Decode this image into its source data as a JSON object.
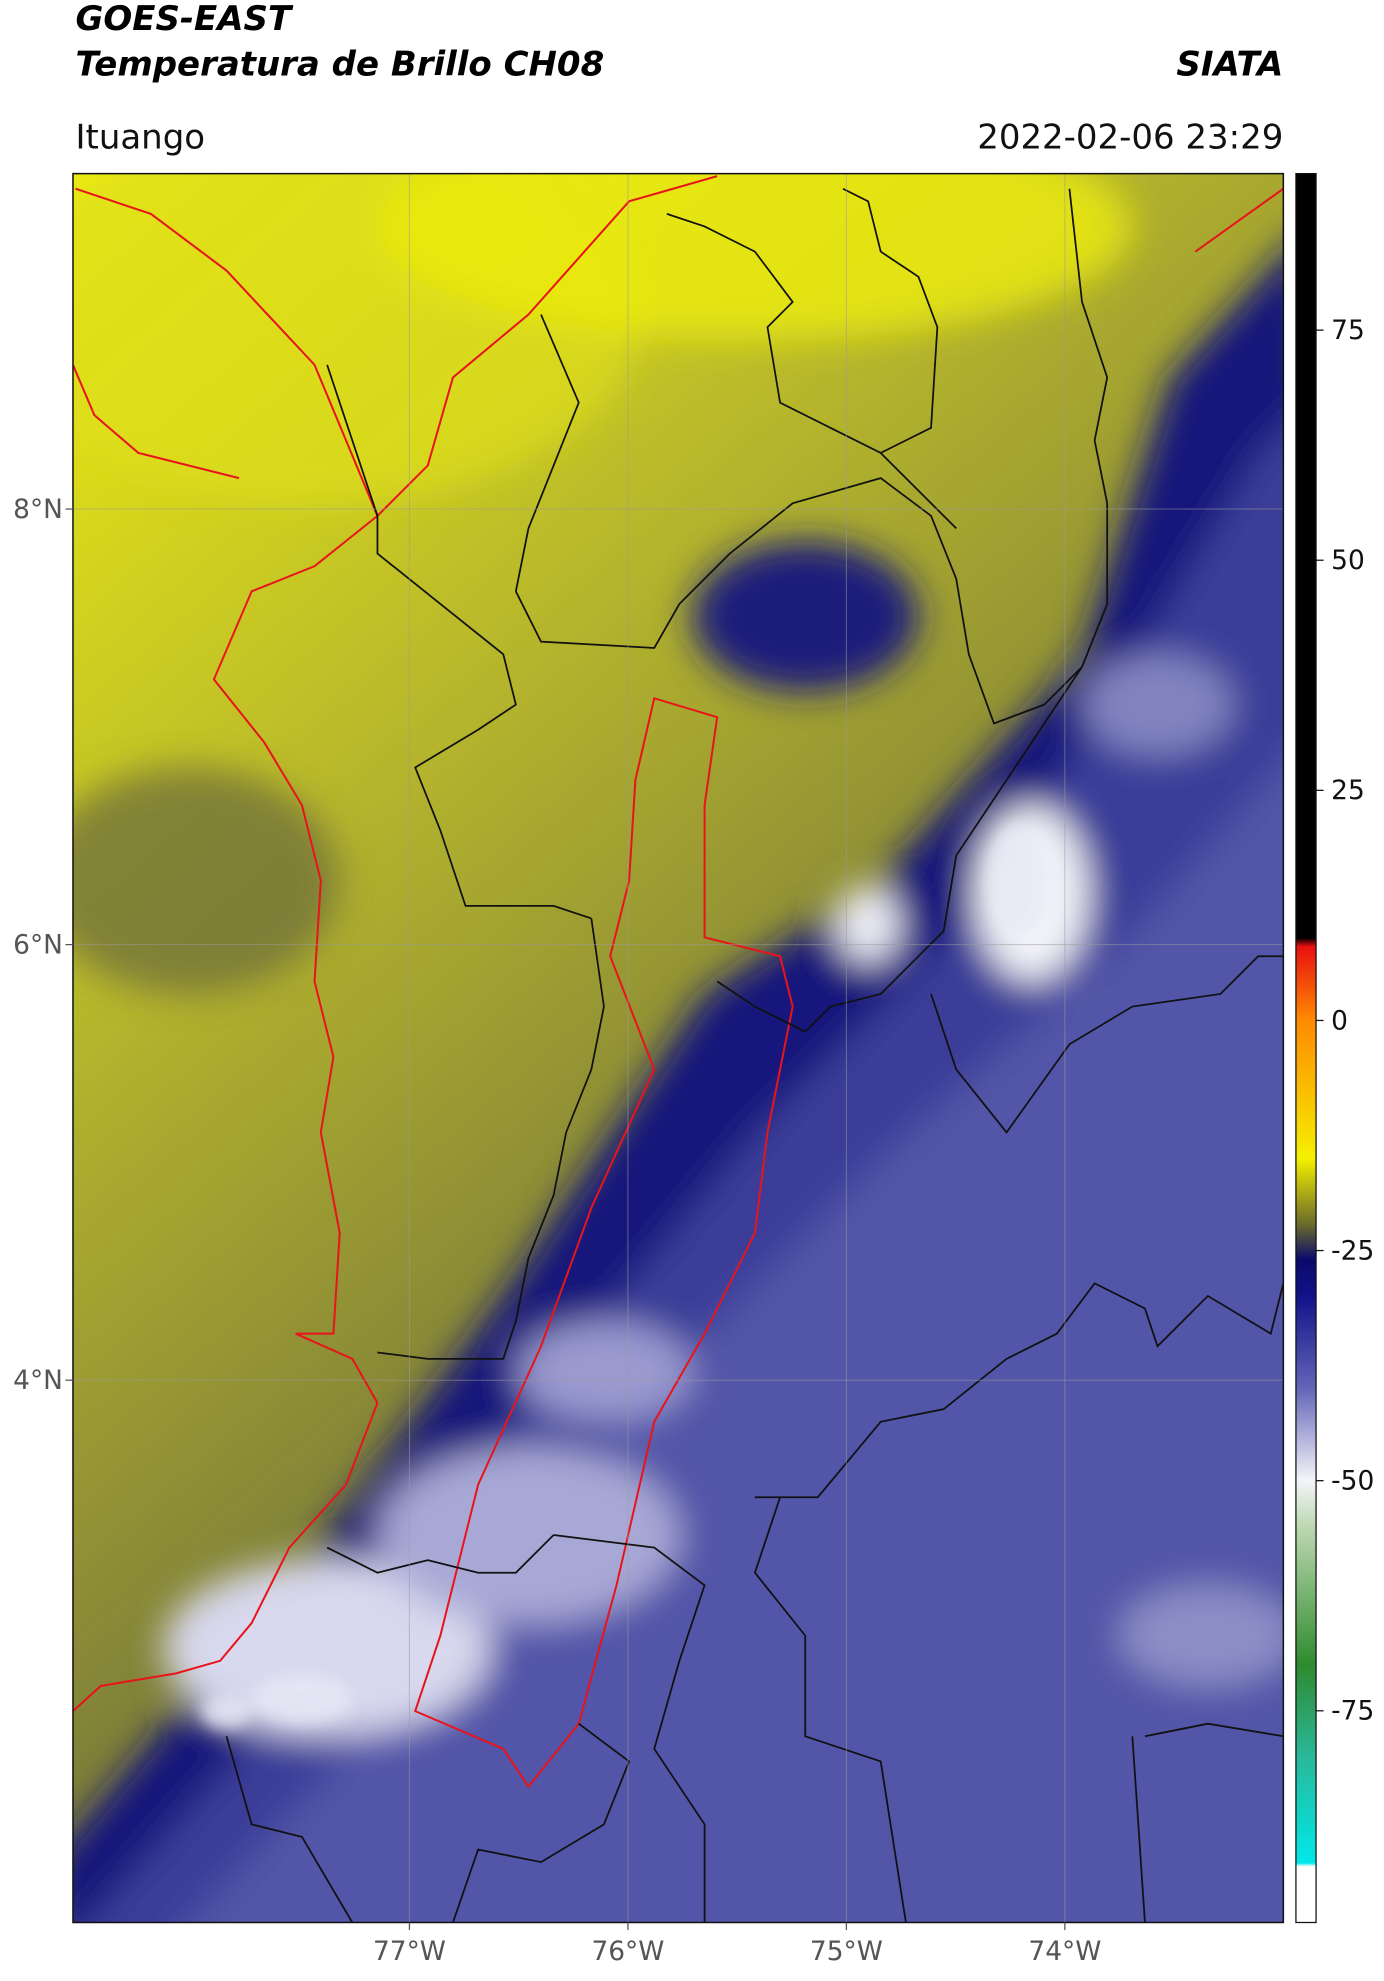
{
  "header": {
    "title": "GOES-EAST",
    "subtitle": "Temperatura de Brillo CH08",
    "source": "SIATA",
    "region": "Ituango",
    "timestamp": "2022-02-06 23:29"
  },
  "map": {
    "xlim": [
      -78.54,
      -73.0
    ],
    "ylim": [
      1.51,
      9.54
    ],
    "xticks": [
      {
        "value": -77,
        "label": "77°W"
      },
      {
        "value": -76,
        "label": "76°W"
      },
      {
        "value": -75,
        "label": "75°W"
      },
      {
        "value": -74,
        "label": "74°W"
      }
    ],
    "yticks": [
      {
        "value": 8,
        "label": "8°N"
      },
      {
        "value": 6,
        "label": "6°N"
      },
      {
        "value": 4,
        "label": "4°N"
      }
    ],
    "grid": true
  },
  "colorbar": {
    "clim": [
      -98,
      92
    ],
    "ticks": [
      75,
      50,
      25,
      0,
      -25,
      -50,
      -75
    ]
  }
}
